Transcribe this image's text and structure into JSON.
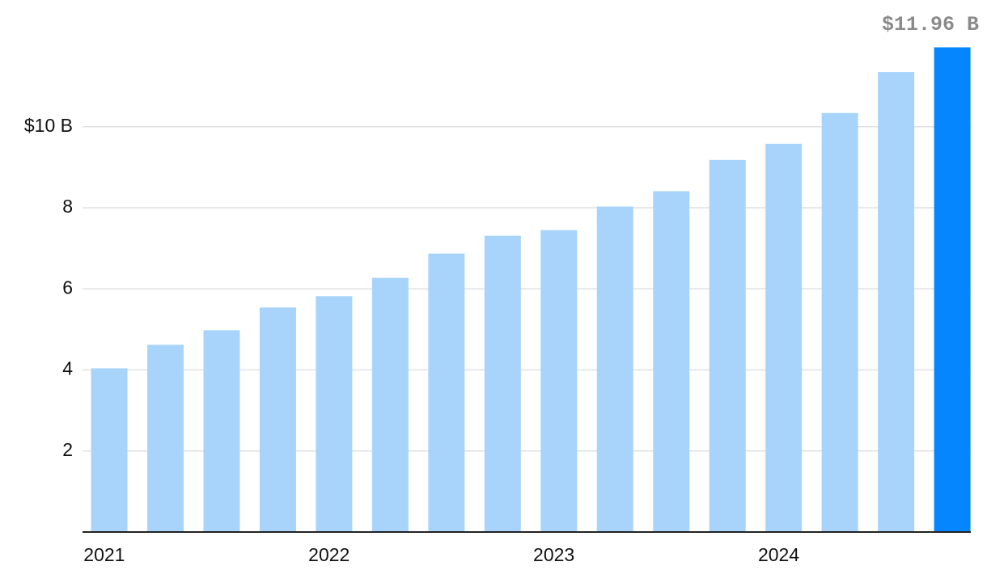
{
  "chart_data": {
    "type": "bar",
    "categories": [
      "2021",
      null,
      null,
      null,
      "2022",
      null,
      null,
      null,
      "2023",
      null,
      null,
      null,
      "2024",
      null,
      null,
      null
    ],
    "values": [
      4.04,
      4.62,
      4.98,
      5.54,
      5.82,
      6.27,
      6.87,
      7.31,
      7.45,
      8.03,
      8.41,
      9.18,
      9.58,
      10.34,
      11.35,
      11.96
    ],
    "value_labels": [
      null,
      null,
      null,
      null,
      null,
      null,
      null,
      null,
      null,
      null,
      null,
      null,
      null,
      null,
      null,
      "$11.96 B"
    ],
    "colors": [
      "#a8d4fc",
      "#a8d4fc",
      "#a8d4fc",
      "#a8d4fc",
      "#a8d4fc",
      "#a8d4fc",
      "#a8d4fc",
      "#a8d4fc",
      "#a8d4fc",
      "#a8d4fc",
      "#a8d4fc",
      "#a8d4fc",
      "#a8d4fc",
      "#a8d4fc",
      "#a8d4fc",
      "#0585fe"
    ],
    "ylim": [
      0,
      12
    ],
    "yticks": [
      2,
      4,
      6,
      8,
      {
        "value": 10,
        "label": "$10 B"
      }
    ],
    "grid": true
  }
}
